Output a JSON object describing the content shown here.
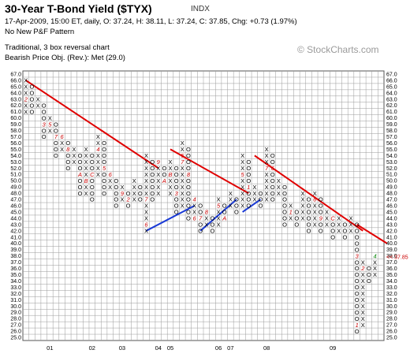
{
  "header": {
    "title": "30-Year T-Bond Yield ($TYX)",
    "ticker": "INDX",
    "stats_line": "17-Apr-2009, 15:00 ET, daily, O: 37.24, H: 38.11, L: 37.24, C: 37.85, Chg: +0.73 (1.97%)",
    "pattern_line": "No New P&F Pattern",
    "method_line": "Traditional, 3 box reversal chart",
    "objective_line": "Bearish Price Obj. (Rev.): Met (29.0)",
    "brand": "© StockCharts.com"
  },
  "colors": {
    "x_mark": "#000000",
    "o_mark": "#000000",
    "month_mark": "#cc0000",
    "resistance_line": "#e00000",
    "support_line": "#1a3ad6",
    "grid": "#9a9a9a",
    "last_price_marker": "#cc0000",
    "last_month_mark": "#008000"
  },
  "chart_data": {
    "type": "point-and-figure",
    "title": "30-Year T-Bond Yield ($TYX)",
    "box_size": 1.0,
    "reversal": 3,
    "ylim": [
      25.0,
      67.0
    ],
    "y_ticks": [
      "67.0",
      "66.0",
      "65.0",
      "64.0",
      "63.0",
      "62.0",
      "61.0",
      "60.0",
      "59.0",
      "58.0",
      "57.0",
      "56.0",
      "55.0",
      "54.0",
      "53.0",
      "52.0",
      "51.0",
      "50.0",
      "49.0",
      "48.0",
      "47.0",
      "46.0",
      "45.0",
      "44.0",
      "43.0",
      "42.0",
      "41.0",
      "40.0",
      "39.0",
      "38.0",
      "37.0",
      "36.0",
      "35.0",
      "34.0",
      "33.0",
      "32.0",
      "31.0",
      "30.0",
      "29.0",
      "28.0",
      "27.0",
      "26.0",
      "25.0"
    ],
    "x_ticks": [
      {
        "label": "01",
        "col": 4
      },
      {
        "label": "02",
        "col": 11
      },
      {
        "label": "03",
        "col": 16
      },
      {
        "label": "04",
        "col": 22
      },
      {
        "label": "05",
        "col": 24
      },
      {
        "label": "06",
        "col": 32
      },
      {
        "label": "07",
        "col": 34
      },
      {
        "label": "08",
        "col": 40
      },
      {
        "label": "09",
        "col": 51
      }
    ],
    "last_price_label": "<< 37.85",
    "columns": [
      {
        "t": "X",
        "lo": 61,
        "hi": 66,
        "m": {
          "63": "2"
        }
      },
      {
        "t": "O",
        "lo": 61,
        "hi": 65
      },
      {
        "t": "X",
        "lo": 62,
        "hi": 63
      },
      {
        "t": "O",
        "lo": 57,
        "hi": 62,
        "m": {
          "59": "3"
        }
      },
      {
        "t": "X",
        "lo": 58,
        "hi": 60,
        "m": {
          "59": "5"
        }
      },
      {
        "t": "O",
        "lo": 54,
        "hi": 59,
        "m": {
          "57": "7"
        }
      },
      {
        "t": "X",
        "lo": 55,
        "hi": 57,
        "m": {
          "57": "6"
        }
      },
      {
        "t": "O",
        "lo": 52,
        "hi": 56,
        "m": {
          "55": "8"
        }
      },
      {
        "t": "X",
        "lo": 53,
        "hi": 55
      },
      {
        "t": "O",
        "lo": 48,
        "hi": 54,
        "m": {
          "51": "A"
        }
      },
      {
        "t": "X",
        "lo": 48,
        "hi": 55,
        "m": {
          "50": "B"
        }
      },
      {
        "t": "O",
        "lo": 47,
        "hi": 54,
        "m": {
          "51": "C"
        }
      },
      {
        "t": "X",
        "lo": 51,
        "hi": 57,
        "m": {
          "55": "4"
        }
      },
      {
        "t": "O",
        "lo": 48,
        "hi": 56,
        "m": {
          "52": "5"
        }
      },
      {
        "t": "X",
        "lo": 49,
        "hi": 51,
        "m": {
          "51": "6"
        }
      },
      {
        "t": "O",
        "lo": 46,
        "hi": 50
      },
      {
        "t": "X",
        "lo": 47,
        "hi": 49,
        "m": {
          "48": "9"
        }
      },
      {
        "t": "O",
        "lo": 46,
        "hi": 48,
        "m": {
          "47": "2"
        }
      },
      {
        "t": "X",
        "lo": 47,
        "hi": 50
      },
      {
        "t": "O",
        "lo": 47,
        "hi": 49
      },
      {
        "t": "X",
        "lo": 42,
        "hi": 54,
        "m": {
          "43": "6",
          "47": "7"
        }
      },
      {
        "t": "O",
        "lo": 47,
        "hi": 53
      },
      {
        "t": "X",
        "lo": 48,
        "hi": 53,
        "m": {
          "53": "9"
        }
      },
      {
        "t": "O",
        "lo": 50,
        "hi": 52,
        "m": {
          "50": "A"
        }
      },
      {
        "t": "X",
        "lo": 48,
        "hi": 53,
        "m": {
          "51": "B"
        }
      },
      {
        "t": "O",
        "lo": 45,
        "hi": 52,
        "m": {
          "48": "3"
        }
      },
      {
        "t": "X",
        "lo": 46,
        "hi": 56,
        "m": {
          "54": "5",
          "53": "7"
        }
      },
      {
        "t": "O",
        "lo": 44,
        "hi": 55,
        "m": {
          "51": "8"
        }
      },
      {
        "t": "X",
        "lo": 44,
        "hi": 47,
        "m": {
          "47": "4",
          "44": "6"
        }
      },
      {
        "t": "O",
        "lo": 42,
        "hi": 46,
        "m": {
          "44": "7"
        }
      },
      {
        "t": "X",
        "lo": 43,
        "hi": 45,
        "m": {
          "45": "8"
        }
      },
      {
        "t": "O",
        "lo": 42,
        "hi": 44
      },
      {
        "t": "X",
        "lo": 43,
        "hi": 47,
        "m": {
          "46": "5"
        }
      },
      {
        "t": "O",
        "lo": 44,
        "hi": 46,
        "m": {
          "44": "A"
        }
      },
      {
        "t": "X",
        "lo": 46,
        "hi": 48
      },
      {
        "t": "O",
        "lo": 45,
        "hi": 47
      },
      {
        "t": "X",
        "lo": 46,
        "hi": 54,
        "m": {
          "51": "5"
        }
      },
      {
        "t": "O",
        "lo": 46,
        "hi": 53,
        "m": {
          "49": "1"
        }
      },
      {
        "t": "X",
        "lo": 47,
        "hi": 49
      },
      {
        "t": "O",
        "lo": 46,
        "hi": 48
      },
      {
        "t": "X",
        "lo": 47,
        "hi": 55,
        "m": {
          "52": "7"
        }
      },
      {
        "t": "O",
        "lo": 47,
        "hi": 54,
        "m": {
          "52": "6"
        }
      },
      {
        "t": "X",
        "lo": 48,
        "hi": 50
      },
      {
        "t": "O",
        "lo": 43,
        "hi": 49
      },
      {
        "t": "X",
        "lo": 44,
        "hi": 46,
        "m": {
          "45": "1"
        }
      },
      {
        "t": "O",
        "lo": 43,
        "hi": 45
      },
      {
        "t": "X",
        "lo": 44,
        "hi": 48
      },
      {
        "t": "O",
        "lo": 42,
        "hi": 47
      },
      {
        "t": "X",
        "lo": 43,
        "hi": 48,
        "m": {
          "47": "6"
        }
      },
      {
        "t": "O",
        "lo": 42,
        "hi": 47,
        "m": {
          "44": "9"
        }
      },
      {
        "t": "X",
        "lo": 43,
        "hi": 45
      },
      {
        "t": "O",
        "lo": 41,
        "hi": 44,
        "m": {
          "44": "C"
        }
      },
      {
        "t": "X",
        "lo": 42,
        "hi": 44
      },
      {
        "t": "O",
        "lo": 41,
        "hi": 43
      },
      {
        "t": "X",
        "lo": 42,
        "hi": 44
      },
      {
        "t": "O",
        "lo": 26,
        "hi": 43,
        "m": {
          "38": "3",
          "27": "1"
        }
      },
      {
        "t": "X",
        "lo": 27,
        "hi": 37,
        "m": {
          "36": "2"
        }
      },
      {
        "t": "O",
        "lo": 34,
        "hi": 36
      },
      {
        "t": "X",
        "lo": 35,
        "hi": 38,
        "m": {
          "38": "4"
        }
      }
    ],
    "resistance_lines": [
      {
        "from": [
          0,
          66
        ],
        "to": [
          22,
          52
        ]
      },
      {
        "from": [
          24,
          55
        ],
        "to": [
          37,
          48
        ]
      },
      {
        "from": [
          38,
          54
        ],
        "to": [
          56,
          42
        ]
      },
      {
        "from": [
          55,
          43
        ],
        "to": [
          60,
          40
        ]
      }
    ],
    "support_lines": [
      {
        "from": [
          20,
          42
        ],
        "to": [
          28,
          46
        ]
      },
      {
        "from": [
          29,
          42
        ],
        "to": [
          35,
          47
        ]
      },
      {
        "from": [
          36,
          45
        ],
        "to": [
          39,
          47
        ]
      }
    ]
  }
}
